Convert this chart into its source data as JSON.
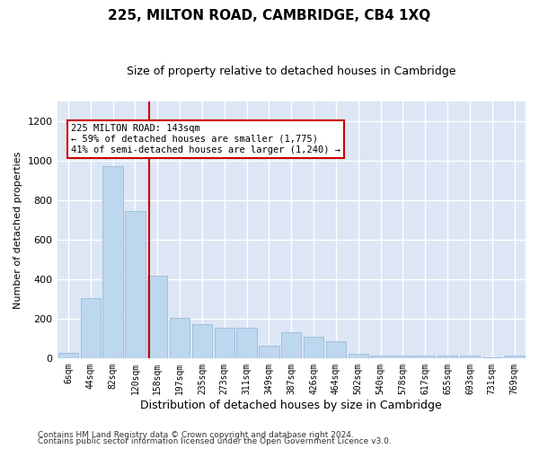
{
  "title": "225, MILTON ROAD, CAMBRIDGE, CB4 1XQ",
  "subtitle": "Size of property relative to detached houses in Cambridge",
  "xlabel": "Distribution of detached houses by size in Cambridge",
  "ylabel": "Number of detached properties",
  "categories": [
    "6sqm",
    "44sqm",
    "82sqm",
    "120sqm",
    "158sqm",
    "197sqm",
    "235sqm",
    "273sqm",
    "311sqm",
    "349sqm",
    "387sqm",
    "426sqm",
    "464sqm",
    "502sqm",
    "540sqm",
    "578sqm",
    "617sqm",
    "655sqm",
    "693sqm",
    "731sqm",
    "769sqm"
  ],
  "values": [
    25,
    305,
    975,
    745,
    420,
    205,
    170,
    155,
    155,
    65,
    130,
    110,
    85,
    20,
    15,
    15,
    15,
    15,
    15,
    5,
    15
  ],
  "bar_color": "#bdd7ee",
  "bar_edge_color": "#9abbd8",
  "property_line_color": "#cc0000",
  "property_line_x": 3.63,
  "annotation_text": "225 MILTON ROAD: 143sqm\n← 59% of detached houses are smaller (1,775)\n41% of semi-detached houses are larger (1,240) →",
  "annotation_box_facecolor": "white",
  "annotation_box_edgecolor": "#cc0000",
  "bg_color": "#dce6f5",
  "grid_color": "white",
  "ylim": [
    0,
    1300
  ],
  "yticks": [
    0,
    200,
    400,
    600,
    800,
    1000,
    1200
  ],
  "footer1": "Contains HM Land Registry data © Crown copyright and database right 2024.",
  "footer2": "Contains public sector information licensed under the Open Government Licence v3.0."
}
